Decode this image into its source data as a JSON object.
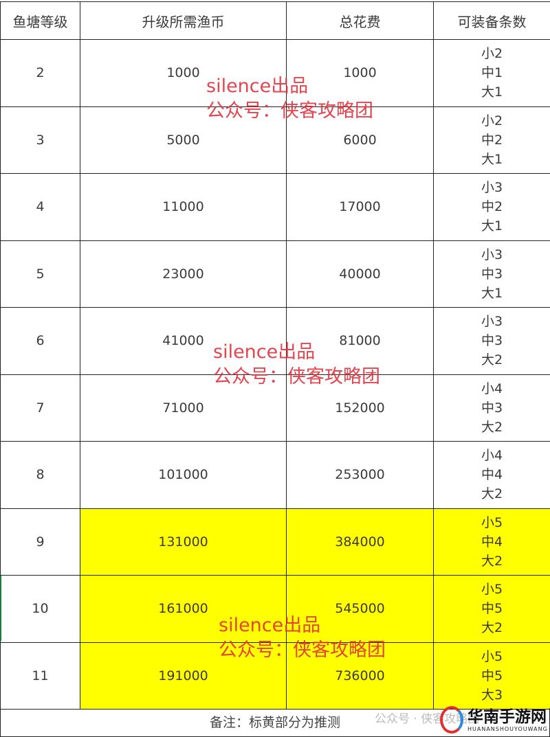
{
  "table": {
    "headers": [
      "鱼塘等级",
      "升级所需渔币",
      "总花费",
      "可装备条数"
    ],
    "rows": [
      {
        "level": "2",
        "upgrade": "1000",
        "total": "1000",
        "equip": [
          "小2",
          "中1",
          "大1"
        ],
        "highlight": false
      },
      {
        "level": "3",
        "upgrade": "5000",
        "total": "6000",
        "equip": [
          "小2",
          "中2",
          "大1"
        ],
        "highlight": false
      },
      {
        "level": "4",
        "upgrade": "11000",
        "total": "17000",
        "equip": [
          "小3",
          "中2",
          "大1"
        ],
        "highlight": false
      },
      {
        "level": "5",
        "upgrade": "23000",
        "total": "40000",
        "equip": [
          "小3",
          "中3",
          "大1"
        ],
        "highlight": false
      },
      {
        "level": "6",
        "upgrade": "41000",
        "total": "81000",
        "equip": [
          "小3",
          "中3",
          "大2"
        ],
        "highlight": false
      },
      {
        "level": "7",
        "upgrade": "71000",
        "total": "152000",
        "equip": [
          "小4",
          "中3",
          "大2"
        ],
        "highlight": false
      },
      {
        "level": "8",
        "upgrade": "101000",
        "total": "253000",
        "equip": [
          "小4",
          "中4",
          "大2"
        ],
        "highlight": false
      },
      {
        "level": "9",
        "upgrade": "131000",
        "total": "384000",
        "equip": [
          "小5",
          "中4",
          "大2"
        ],
        "highlight": true
      },
      {
        "level": "10",
        "upgrade": "161000",
        "total": "545000",
        "equip": [
          "小5",
          "中5",
          "大2"
        ],
        "highlight": true
      },
      {
        "level": "11",
        "upgrade": "191000",
        "total": "736000",
        "equip": [
          "小5",
          "中5",
          "大3"
        ],
        "highlight": true
      }
    ],
    "footnote": "备注：标黄部分为推测",
    "highlight_color": "#ffff00"
  },
  "watermark": {
    "line1": "silence出品",
    "line2": "公众号：侠客攻略团",
    "color": "#e0303a"
  },
  "bottom_watermark": {
    "text": "公众号 · 侠客攻略团",
    "logo_text": "华南手游网",
    "logo_sub": "HUANANSHOUYOUWANG"
  }
}
